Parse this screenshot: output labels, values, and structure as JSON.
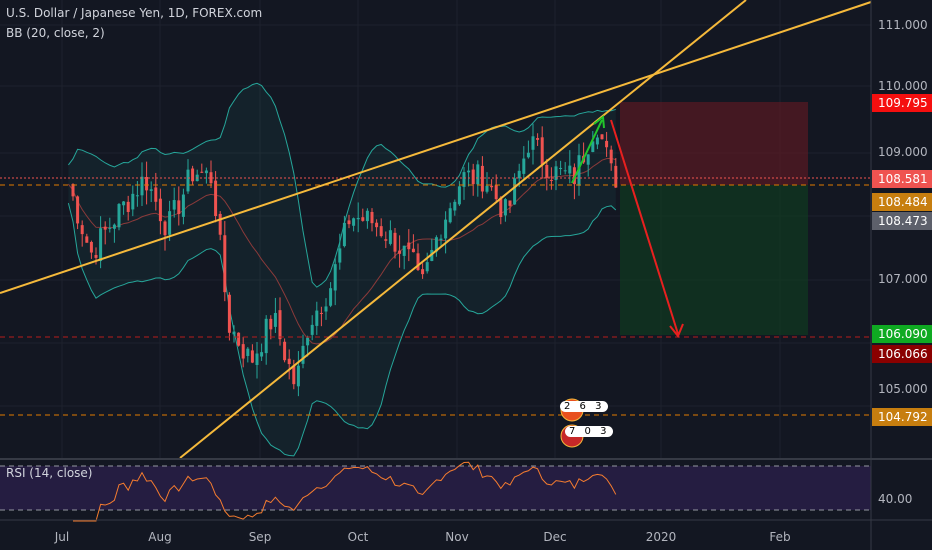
{
  "header": {
    "title": "U.S. Dollar / Japanese Yen, 1D, FOREX.com",
    "indicator": "BB (20, close, 2)",
    "rsi_label": "RSI (14, close)"
  },
  "events": {
    "badge1": "2 6 3",
    "badge2": "7 0 3"
  },
  "chart_data": {
    "type": "candlestick",
    "title": "U.S. Dollar / Japanese Yen, 1D, FOREX.com",
    "x_ticks": [
      "Jul",
      "Aug",
      "Sep",
      "Oct",
      "Nov",
      "Dec",
      "2020",
      "Feb"
    ],
    "y_ticks": [
      "111.000",
      "110.000",
      "109.000",
      "107.000",
      "105.000"
    ],
    "ylim": [
      104.2,
      111.4
    ],
    "close_path": [
      [
        "Jun 17",
        108.5
      ],
      [
        "Jun 24",
        107.4
      ],
      [
        "Jul 1",
        108.0
      ],
      [
        "Jul 10",
        108.6
      ],
      [
        "Jul 17",
        107.8
      ],
      [
        "Jul 25",
        108.7
      ],
      [
        "Jul 31",
        108.6
      ],
      [
        "Aug 5",
        106.3
      ],
      [
        "Aug 12",
        105.7
      ],
      [
        "Aug 19",
        106.4
      ],
      [
        "Aug 26",
        105.3
      ],
      [
        "Aug 30",
        106.3
      ],
      [
        "Sep 6",
        106.9
      ],
      [
        "Sep 12",
        108.0
      ],
      [
        "Sep 19",
        107.9
      ],
      [
        "Sep 26",
        107.6
      ],
      [
        "Oct 2",
        107.2
      ],
      [
        "Oct 4",
        106.8
      ],
      [
        "Oct 10",
        107.8
      ],
      [
        "Oct 17",
        108.6
      ],
      [
        "Oct 24",
        108.6
      ],
      [
        "Oct 31",
        108.0
      ],
      [
        "Nov 7",
        109.2
      ],
      [
        "Nov 14",
        108.7
      ],
      [
        "Nov 21",
        108.6
      ],
      [
        "Nov 28",
        109.5
      ],
      [
        "Dec 3",
        108.6
      ],
      [
        "Dec 5",
        108.6
      ]
    ],
    "price_labels": [
      {
        "value": "109.795",
        "color": "#f50f0f"
      },
      {
        "value": "108.581",
        "color": "#ef5350"
      },
      {
        "value": "108.484",
        "color": "#c77e0f"
      },
      {
        "value": "108.473",
        "color": "#5d606b"
      },
      {
        "value": "106.090",
        "color": "#0faa22"
      },
      {
        "value": "106.066",
        "color": "#8a0000"
      },
      {
        "value": "104.792",
        "color": "#c77e0f"
      }
    ],
    "rsi": {
      "tick": "40.00",
      "bands": [
        70,
        30
      ]
    },
    "colors": {
      "up": "#26a69a",
      "down": "#ef5350",
      "trendline": "#f5b93b",
      "bb": "#26a69a",
      "basis": "#8b3a3a",
      "rsi": "#f57c2f"
    }
  }
}
